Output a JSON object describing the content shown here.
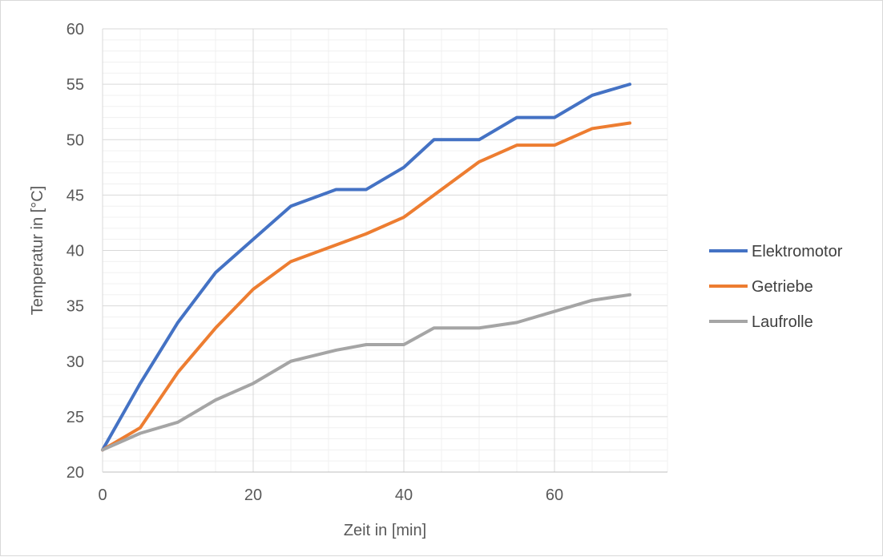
{
  "chart_data": {
    "type": "line",
    "title": "",
    "xlabel": "Zeit in [min]",
    "ylabel": "Temperatur in [°C]",
    "xlim": [
      0,
      75
    ],
    "ylim": [
      20,
      60
    ],
    "x_ticks": [
      0,
      20,
      40,
      60
    ],
    "y_ticks": [
      20,
      25,
      30,
      35,
      40,
      45,
      50,
      55,
      60
    ],
    "grid": "major and minor",
    "legend_position": "right",
    "x": [
      0,
      5,
      10,
      15,
      20,
      25,
      31,
      35,
      40,
      44,
      50,
      55,
      60,
      65,
      70
    ],
    "series": [
      {
        "name": "Elektromotor",
        "color": "#4472C4",
        "values": [
          22,
          28,
          33.5,
          38,
          41,
          44,
          45.5,
          45.5,
          47.5,
          50,
          50,
          52,
          52,
          54,
          55
        ]
      },
      {
        "name": "Getriebe",
        "color": "#ED7D31",
        "values": [
          22,
          24,
          29,
          33,
          36.5,
          39,
          40.5,
          41.5,
          43,
          45,
          48,
          49.5,
          49.5,
          51,
          51.5
        ]
      },
      {
        "name": "Laufrolle",
        "color": "#A5A5A5",
        "values": [
          22,
          23.5,
          24.5,
          26.5,
          28,
          30,
          31,
          31.5,
          31.5,
          33,
          33,
          33.5,
          34.5,
          35.5,
          36
        ]
      }
    ]
  }
}
